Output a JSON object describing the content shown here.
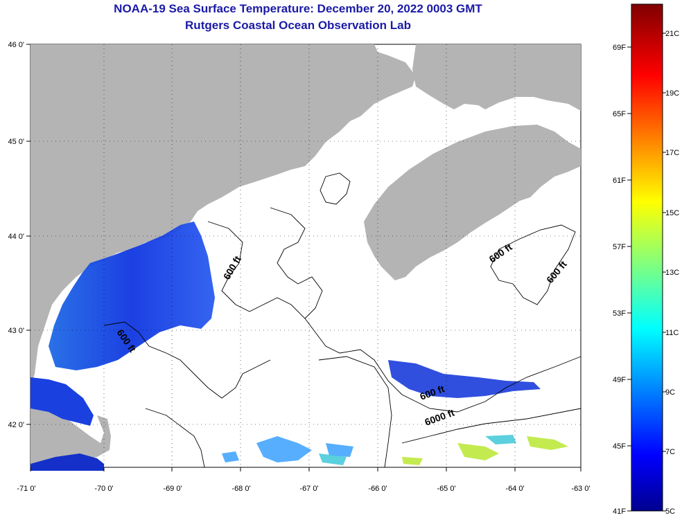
{
  "title": {
    "line1": "NOAA-19 Sea Surface Temperature:  December 20, 2022 0003 GMT",
    "line2": "Rutgers Coastal Ocean Observation Lab"
  },
  "map": {
    "lon_labels": [
      "-71 0'",
      "-70 0'",
      "-69 0'",
      "-68 0'",
      "-67 0'",
      "-66 0'",
      "-65 0'",
      "-64 0'",
      "-63 0'"
    ],
    "lat_labels": [
      "46 0'",
      "45 0'",
      "44 0'",
      "43 0'",
      "42 0'"
    ],
    "land_color": "#b4b4b4",
    "cloud_color": "#ffffff",
    "contour_labels": [
      "600 ft",
      "600 ft",
      "600 ft",
      "600 ft",
      "600 ft",
      "6000 ft"
    ]
  },
  "colorbar": {
    "fahrenheit_labels": [
      "69F",
      "65F",
      "61F",
      "57F",
      "53F",
      "49F",
      "45F",
      "41F"
    ],
    "celsius_labels": [
      "21C",
      "19C",
      "17C",
      "15C",
      "13C",
      "11C",
      "9C",
      "7C",
      "5C"
    ],
    "range_c": [
      5,
      22
    ],
    "colormap": "jet"
  }
}
